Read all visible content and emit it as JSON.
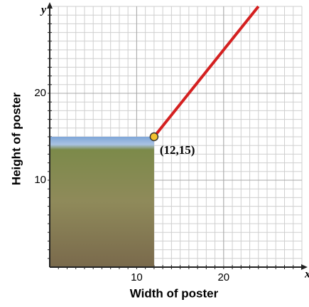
{
  "chart_data": {
    "type": "line",
    "x_label": "Width of poster",
    "y_label": "Height of poster",
    "x_axis_name": "x",
    "y_axis_name": "y",
    "series": [
      {
        "x": [
          12,
          24
        ],
        "values": [
          15,
          30
        ],
        "color": "#d42020"
      }
    ],
    "point_color": "#f2c230",
    "annotation": "(12,15)",
    "xlim": [
      0,
      29
    ],
    "ylim": [
      0,
      30
    ],
    "xticks": [
      10,
      20
    ],
    "yticks": [
      10,
      20
    ],
    "xminor": [
      1,
      2,
      3,
      4,
      5,
      6,
      7,
      8,
      9,
      10,
      11,
      12,
      13,
      14,
      15,
      16,
      17,
      18,
      19,
      20,
      21,
      22,
      23,
      24,
      25,
      26,
      27,
      28,
      29
    ],
    "yminor": [
      1,
      2,
      3,
      4,
      5,
      6,
      7,
      8,
      9,
      10,
      11,
      12,
      13,
      14,
      15,
      16,
      17,
      18,
      19,
      20,
      21,
      22,
      23,
      24,
      25,
      26,
      27,
      28,
      29,
      30
    ],
    "grid": true
  }
}
